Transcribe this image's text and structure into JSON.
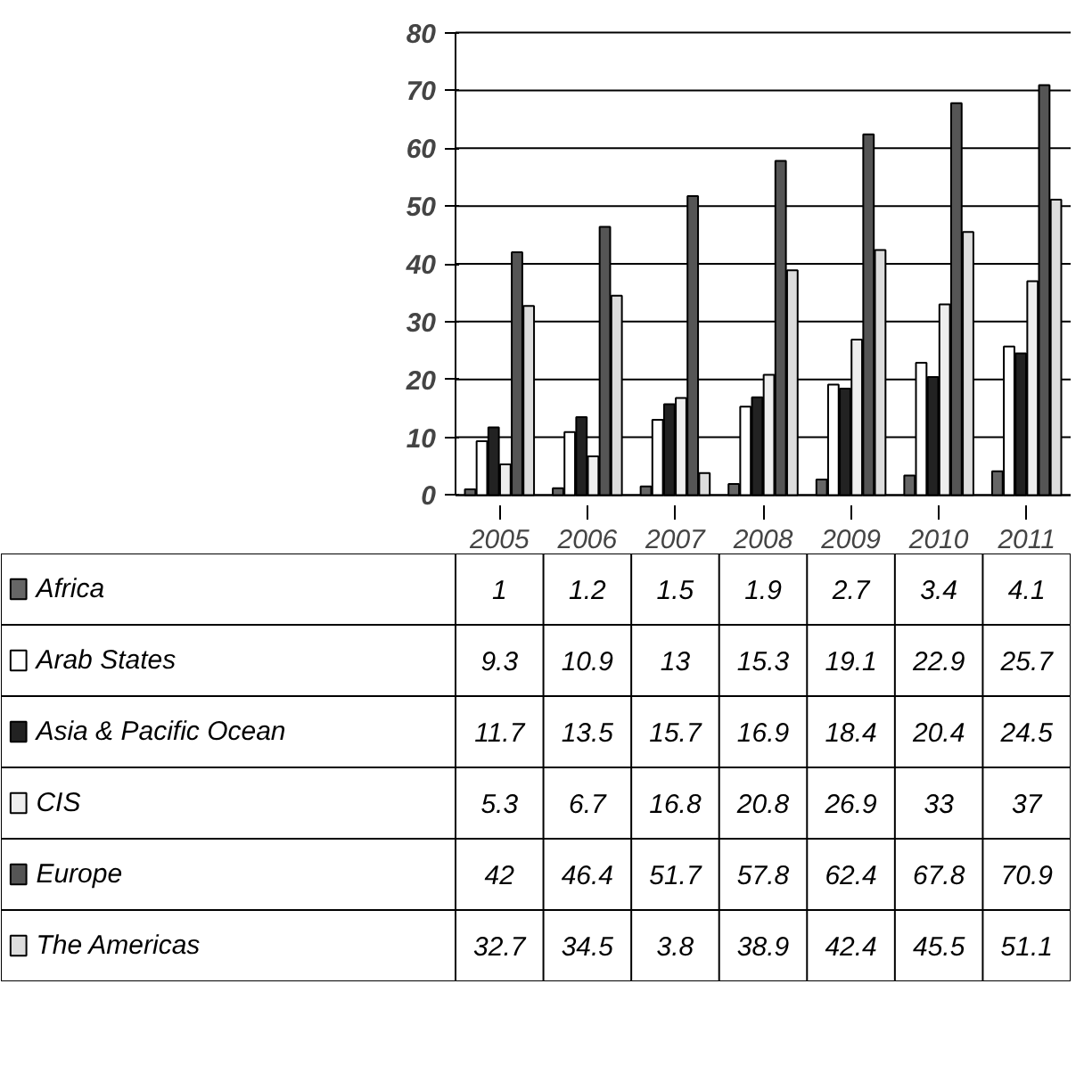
{
  "chart_data": {
    "type": "bar",
    "categories": [
      "2005",
      "2006",
      "2007",
      "2008",
      "2009",
      "2010",
      "2011"
    ],
    "series": [
      {
        "name": "Africa",
        "color": "#666666",
        "values": [
          1,
          1.2,
          1.5,
          1.9,
          2.7,
          3.4,
          4.1
        ]
      },
      {
        "name": "Arab States",
        "color": "#ffffff",
        "values": [
          9.3,
          10.9,
          13,
          15.3,
          19.1,
          22.9,
          25.7
        ]
      },
      {
        "name": "Asia & Pacific Ocean",
        "color": "#222222",
        "values": [
          11.7,
          13.5,
          15.7,
          16.9,
          18.4,
          20.4,
          24.5
        ]
      },
      {
        "name": "CIS",
        "color": "#eeeeee",
        "values": [
          5.3,
          6.7,
          16.8,
          20.8,
          26.9,
          33,
          37
        ]
      },
      {
        "name": "Europe",
        "color": "#555555",
        "values": [
          42,
          46.4,
          51.7,
          57.8,
          62.4,
          67.8,
          70.9
        ]
      },
      {
        "name": "The Americas",
        "color": "#dddddd",
        "values": [
          32.7,
          34.5,
          3.8,
          38.9,
          42.4,
          45.5,
          51.1
        ]
      }
    ],
    "ylim": [
      0,
      80
    ],
    "yticks": [
      0,
      10,
      20,
      30,
      40,
      50,
      60,
      70,
      80
    ],
    "grid": "y",
    "legend": "bottom",
    "data_labels": true
  }
}
